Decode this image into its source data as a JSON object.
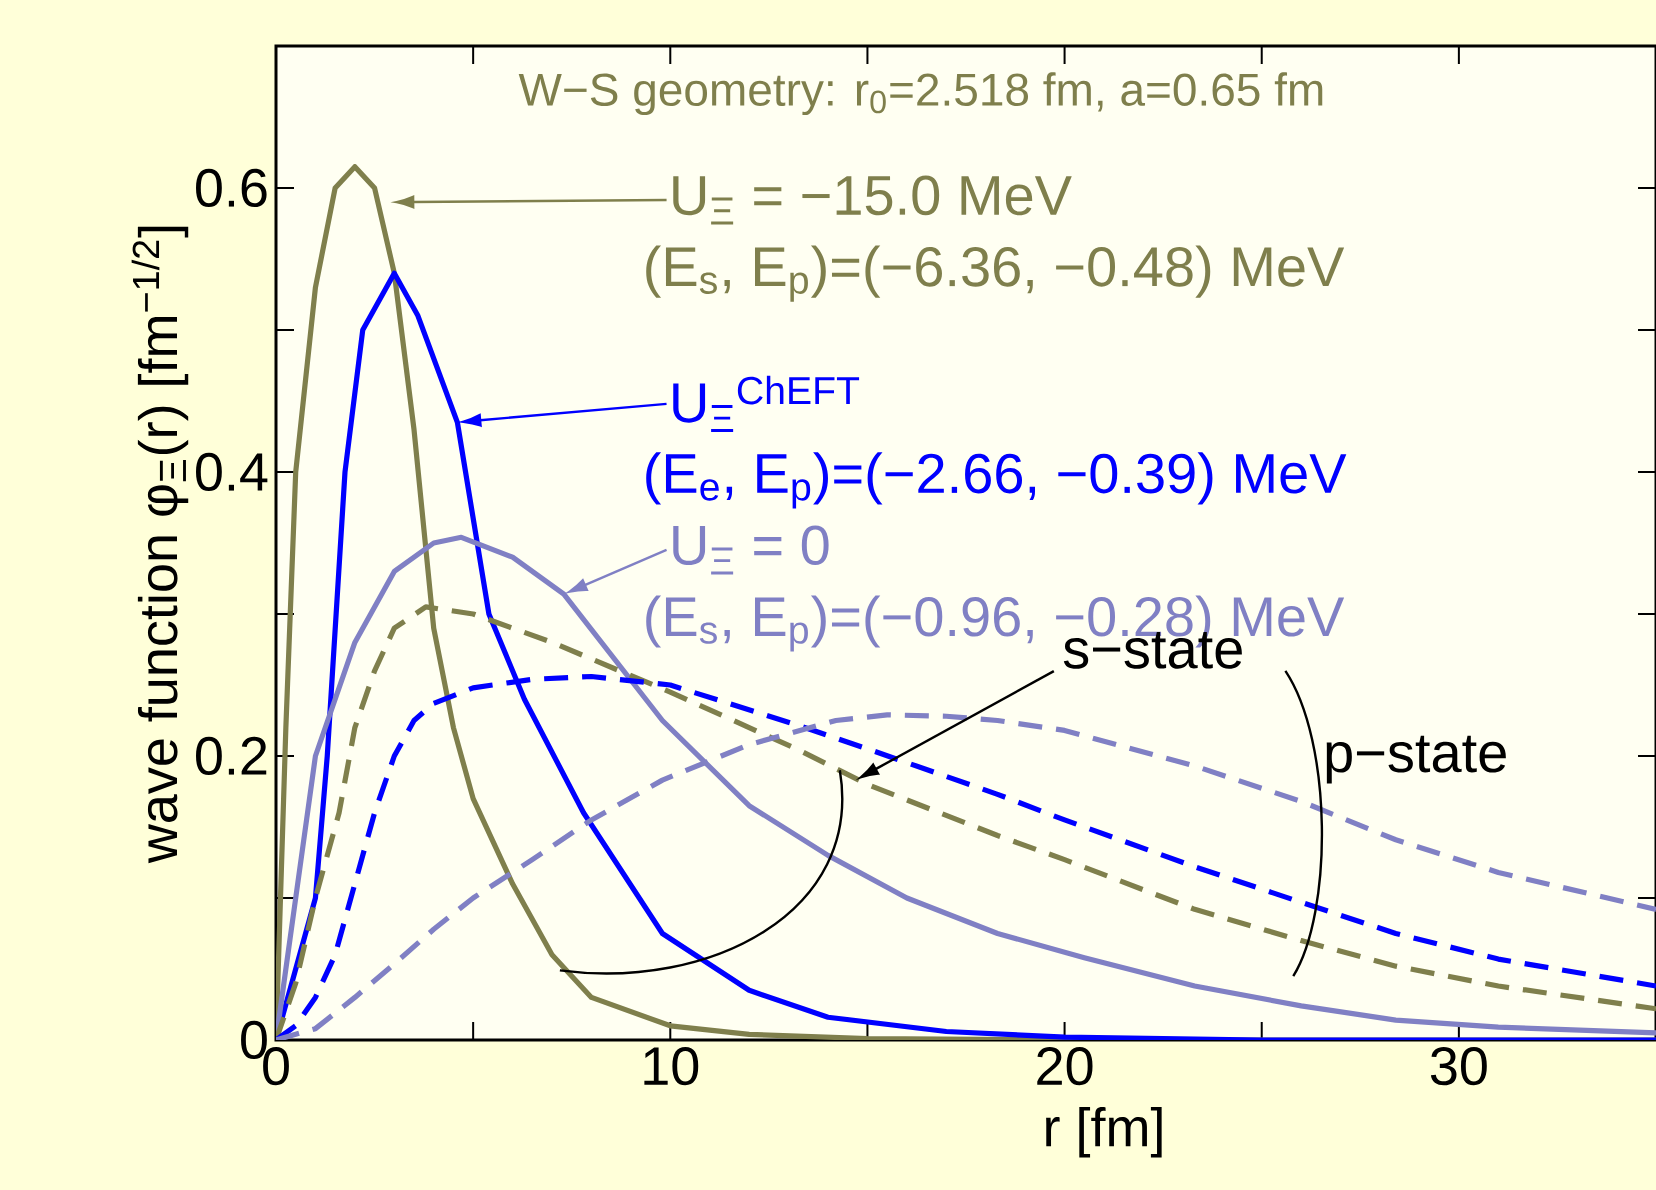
{
  "chart_data": {
    "type": "line",
    "xlabel": "r  [fm]",
    "ylabel": "wave function φ$_{Ξ}$(r) [fm$^{−1/2}$]",
    "xlim": [
      0,
      35
    ],
    "ylim": [
      0,
      0.7
    ],
    "xticks": [
      0,
      {
        "value": 5,
        "label": null
      },
      10,
      {
        "value": 15,
        "label": null
      },
      20,
      {
        "value": 25,
        "label": null
      },
      30
    ],
    "yticks": [
      0,
      {
        "value": 0.1,
        "label": null
      },
      0.2,
      {
        "value": 0.3,
        "label": null
      },
      0.4,
      {
        "value": 0.5,
        "label": null
      },
      0.6
    ],
    "marker": "none",
    "series": [
      {
        "color": "#7f7f4c",
        "line_style": "solid",
        "x": [
          0,
          0.25,
          0.5,
          1,
          1.5,
          2,
          2.5,
          3,
          3.5,
          4,
          4.5,
          5,
          6,
          7,
          8,
          10,
          12,
          15,
          20,
          35
        ],
        "values": [
          0,
          0.22,
          0.4,
          0.53,
          0.6,
          0.615,
          0.6,
          0.54,
          0.43,
          0.29,
          0.22,
          0.17,
          0.11,
          0.06,
          0.03,
          0.01,
          0.004,
          0.001,
          0,
          0
        ]
      },
      {
        "color": "#0000ff",
        "line_style": "solid",
        "x": [
          0,
          0.5,
          1,
          1.3,
          1.75,
          2.2,
          3,
          3.6,
          4.6,
          5.4,
          6.3,
          7.8,
          9.8,
          12,
          14,
          17,
          20,
          25,
          35
        ],
        "values": [
          0,
          0.05,
          0.1,
          0.2,
          0.4,
          0.5,
          0.54,
          0.51,
          0.435,
          0.3,
          0.24,
          0.16,
          0.075,
          0.035,
          0.016,
          0.006,
          0.002,
          0,
          0
        ]
      },
      {
        "color": "#8080c4",
        "line_style": "solid",
        "x": [
          0,
          0.5,
          1,
          2,
          3,
          4,
          4.7,
          6,
          7.3,
          9.8,
          12,
          14,
          16,
          18.3,
          20.5,
          23.3,
          26,
          28.4,
          31,
          35
        ],
        "values": [
          0,
          0.1,
          0.2,
          0.28,
          0.33,
          0.35,
          0.354,
          0.34,
          0.314,
          0.225,
          0.165,
          0.13,
          0.1,
          0.075,
          0.058,
          0.038,
          0.024,
          0.014,
          0.009,
          0.005
        ]
      },
      {
        "color": "#7f7f4c",
        "line_style": "dashed",
        "x": [
          0,
          0.5,
          1,
          1.6,
          2,
          2.5,
          3,
          3.8,
          5,
          7,
          10,
          13.2,
          15,
          18.3,
          20,
          23.3,
          26,
          28.4,
          31,
          35
        ],
        "values": [
          0,
          0.04,
          0.1,
          0.16,
          0.22,
          0.26,
          0.29,
          0.305,
          0.3,
          0.28,
          0.245,
          0.205,
          0.18,
          0.144,
          0.127,
          0.092,
          0.07,
          0.052,
          0.038,
          0.022
        ]
      },
      {
        "color": "#0000ff",
        "line_style": "dashed",
        "x": [
          0,
          0.5,
          1,
          1.5,
          2,
          2.5,
          3,
          3.5,
          4,
          5,
          6.5,
          8,
          10,
          13.2,
          15,
          18.3,
          20,
          23.3,
          26,
          28.4,
          31,
          35
        ],
        "values": [
          0,
          0.01,
          0.03,
          0.06,
          0.11,
          0.16,
          0.2,
          0.225,
          0.237,
          0.248,
          0.254,
          0.256,
          0.25,
          0.222,
          0.205,
          0.173,
          0.155,
          0.122,
          0.097,
          0.075,
          0.057,
          0.038
        ]
      },
      {
        "color": "#8080c4",
        "line_style": "dashed",
        "x": [
          0,
          1,
          2,
          3.1,
          4,
          5,
          6.5,
          8,
          9.8,
          12,
          14.2,
          15.5,
          17,
          18.3,
          20,
          23.3,
          26,
          28.4,
          31,
          35
        ],
        "values": [
          0,
          0.008,
          0.03,
          0.056,
          0.078,
          0.1,
          0.127,
          0.155,
          0.183,
          0.208,
          0.225,
          0.229,
          0.228,
          0.225,
          0.218,
          0.193,
          0.168,
          0.141,
          0.118,
          0.092
        ]
      }
    ],
    "annotations": [
      "W−S geometry: r$_{0}$=2.518 fm, a=0.65 fm",
      "U$_{Ξ}$ = −15.0 MeV",
      "(E$_{s}$, E$_{p}$)=(−6.36, −0.48) MeV",
      "U$_{Ξ}$$^{ChEFT}$",
      "(E$_{e}$, E$_{p}$)=(−2.66, −0.39) MeV",
      "U$_{Ξ}$ = 0",
      "(E$_{s}$, E$_{p}$)=(−0.96, −0.28) MeV",
      "s−state",
      "p−state"
    ]
  }
}
